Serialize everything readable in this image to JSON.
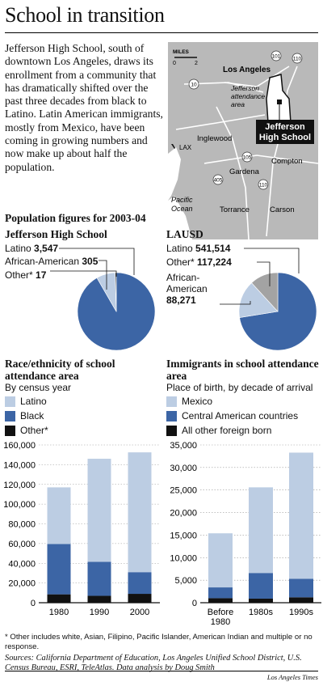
{
  "title": "School in transition",
  "intro": "Jefferson High School, south of downtown Los Angeles, draws its enrollment from a community  that has dramatically shifted over the past three decades from black to Latino. Latin American immigrants, mostly from Mexico, have been coming in growing numbers and now make up about half the population.",
  "colors": {
    "light": "#bccde3",
    "blue": "#3c65a5",
    "black": "#111111",
    "gray": "#a3a3a3",
    "map_land": "#b9b9b9",
    "map_area": "#ffffff"
  },
  "map": {
    "scale_label": "MILES",
    "scale_ticks": [
      "0",
      "2"
    ],
    "places": {
      "los_angeles": "Los Angeles",
      "attendance_area": "Jefferson attendance area",
      "school": "Jefferson High School",
      "lax": "LAX",
      "inglewood": "Inglewood",
      "gardena": "Gardena",
      "compton": "Compton",
      "torrance": "Torrance",
      "carson": "Carson",
      "ocean": "Pacific Ocean"
    },
    "highways": [
      "101",
      "110",
      "10",
      "405",
      "105",
      "110"
    ]
  },
  "population": {
    "heading": "Population figures for 2003-04",
    "jefferson": {
      "name": "Jefferson High School",
      "slices": [
        {
          "label": "Latino",
          "value": 3547,
          "display": "3,547",
          "color": "#3c65a5"
        },
        {
          "label": "African-American",
          "value": 305,
          "display": "305",
          "color": "#bccde3"
        },
        {
          "label": "Other*",
          "value": 17,
          "display": "17",
          "color": "#111111"
        }
      ]
    },
    "lausd": {
      "name": "LAUSD",
      "slices": [
        {
          "label": "Latino",
          "value": 541514,
          "display": "541,514",
          "color": "#3c65a5"
        },
        {
          "label": "Other*",
          "value": 117224,
          "display": "117,224",
          "color": "#bccde3"
        },
        {
          "label": "African-American",
          "value": 88271,
          "display": "88,271",
          "color": "#a3a3a3"
        }
      ]
    }
  },
  "chart_data": [
    {
      "type": "bar",
      "stacked": true,
      "title": "Race/ethnicity of school attendance area",
      "subtitle": "By census year",
      "categories": [
        "1980",
        "1990",
        "2000"
      ],
      "series": [
        {
          "name": "Other*",
          "values": [
            8500,
            7000,
            9000
          ],
          "color": "#111111"
        },
        {
          "name": "Black",
          "values": [
            51000,
            34500,
            22000
          ],
          "color": "#3c65a5"
        },
        {
          "name": "Latino",
          "values": [
            57500,
            104500,
            121500
          ],
          "color": "#bccde3"
        }
      ],
      "yticks": [
        "0",
        "20,000",
        "40,000",
        "60,000",
        "80,000",
        "100,000",
        "120,000",
        "140,000",
        "160,000"
      ],
      "ylim": [
        0,
        160000
      ]
    },
    {
      "type": "bar",
      "stacked": true,
      "title": "Immigrants in school attendance area",
      "subtitle": "Place of birth, by decade of arrival",
      "categories": [
        "Before 1980",
        "1980s",
        "1990s"
      ],
      "series": [
        {
          "name": "All other foreign born",
          "values": [
            1000,
            900,
            1200
          ],
          "color": "#111111"
        },
        {
          "name": "Central American countries",
          "values": [
            2400,
            5700,
            4100
          ],
          "color": "#3c65a5"
        },
        {
          "name": "Mexico",
          "values": [
            12000,
            19000,
            28000
          ],
          "color": "#bccde3"
        }
      ],
      "yticks": [
        "0",
        "5,000",
        "10,000",
        "15,000",
        "20,000",
        "25,000",
        "30,000",
        "35,000"
      ],
      "ylim": [
        0,
        35000
      ]
    }
  ],
  "legend_left": [
    "Latino",
    "Black",
    "Other*"
  ],
  "legend_right": [
    "Mexico",
    "Central American countries",
    "All other foreign born"
  ],
  "footnote": "* Other includes white, Asian, Filipino, Pacific Islander, American Indian and multiple or no response.",
  "sources": "Sources: California Department of Education, Los Angeles Unified School District, U.S. Census Bureau, ESRI, TeleAtlas. Data analysis by Doug Smith",
  "credit": "Los Angeles Times"
}
